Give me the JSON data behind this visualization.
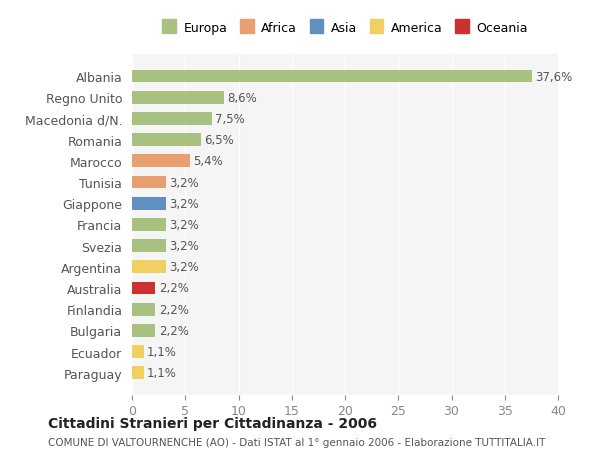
{
  "countries": [
    "Albania",
    "Regno Unito",
    "Macedonia d/N.",
    "Romania",
    "Marocco",
    "Tunisia",
    "Giappone",
    "Francia",
    "Svezia",
    "Argentina",
    "Australia",
    "Finlandia",
    "Bulgaria",
    "Ecuador",
    "Paraguay"
  ],
  "values": [
    37.6,
    8.6,
    7.5,
    6.5,
    5.4,
    3.2,
    3.2,
    3.2,
    3.2,
    3.2,
    2.2,
    2.2,
    2.2,
    1.1,
    1.1
  ],
  "labels": [
    "37,6%",
    "8,6%",
    "7,5%",
    "6,5%",
    "5,4%",
    "3,2%",
    "3,2%",
    "3,2%",
    "3,2%",
    "3,2%",
    "2,2%",
    "2,2%",
    "2,2%",
    "1,1%",
    "1,1%"
  ],
  "colors": [
    "#a8c080",
    "#a8c080",
    "#a8c080",
    "#a8c080",
    "#e8a070",
    "#e8a070",
    "#6090c0",
    "#a8c080",
    "#a8c080",
    "#f0d060",
    "#cc3030",
    "#a8c080",
    "#a8c080",
    "#f0d060",
    "#f0d060"
  ],
  "legend": {
    "labels": [
      "Europa",
      "Africa",
      "Asia",
      "America",
      "Oceania"
    ],
    "colors": [
      "#a8c080",
      "#e8a070",
      "#6090c0",
      "#f0d060",
      "#cc3030"
    ]
  },
  "title": "Cittadini Stranieri per Cittadinanza - 2006",
  "subtitle": "COMUNE DI VALTOURNENCHE (AO) - Dati ISTAT al 1° gennaio 2006 - Elaborazione TUTTITALIA.IT",
  "xlim": [
    0,
    40
  ],
  "xticks": [
    0,
    5,
    10,
    15,
    20,
    25,
    30,
    35,
    40
  ],
  "background_color": "#ffffff",
  "plot_background": "#f5f5f5"
}
